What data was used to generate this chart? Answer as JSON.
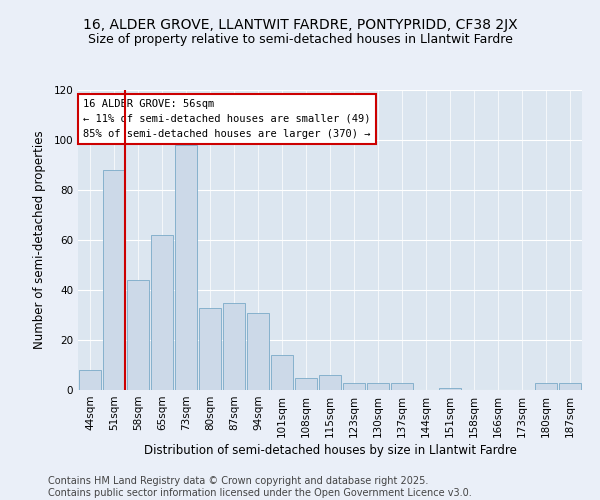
{
  "title": "16, ALDER GROVE, LLANTWIT FARDRE, PONTYPRIDD, CF38 2JX",
  "subtitle": "Size of property relative to semi-detached houses in Llantwit Fardre",
  "xlabel": "Distribution of semi-detached houses by size in Llantwit Fardre",
  "ylabel": "Number of semi-detached properties",
  "categories": [
    "44sqm",
    "51sqm",
    "58sqm",
    "65sqm",
    "73sqm",
    "80sqm",
    "87sqm",
    "94sqm",
    "101sqm",
    "108sqm",
    "115sqm",
    "123sqm",
    "130sqm",
    "137sqm",
    "144sqm",
    "151sqm",
    "158sqm",
    "166sqm",
    "173sqm",
    "180sqm",
    "187sqm"
  ],
  "values": [
    8,
    88,
    44,
    62,
    98,
    33,
    35,
    31,
    14,
    5,
    6,
    3,
    3,
    3,
    0,
    1,
    0,
    0,
    0,
    3,
    3
  ],
  "bar_color": "#ccd9e8",
  "bar_edge_color": "#7aaac8",
  "vline_color": "#cc0000",
  "vline_bar_index": 1,
  "box_text_line1": "16 ALDER GROVE: 56sqm",
  "box_text_line2": "← 11% of semi-detached houses are smaller (49)",
  "box_text_line3": "85% of semi-detached houses are larger (370) →",
  "box_edge_color": "#cc0000",
  "ylim": [
    0,
    120
  ],
  "yticks": [
    0,
    20,
    40,
    60,
    80,
    100,
    120
  ],
  "footnote": "Contains HM Land Registry data © Crown copyright and database right 2025.\nContains public sector information licensed under the Open Government Licence v3.0.",
  "bg_color": "#eaeff8",
  "plot_bg_color": "#dce6f0",
  "title_fontsize": 10,
  "subtitle_fontsize": 9,
  "axis_label_fontsize": 8.5,
  "tick_fontsize": 7.5,
  "footnote_fontsize": 7
}
